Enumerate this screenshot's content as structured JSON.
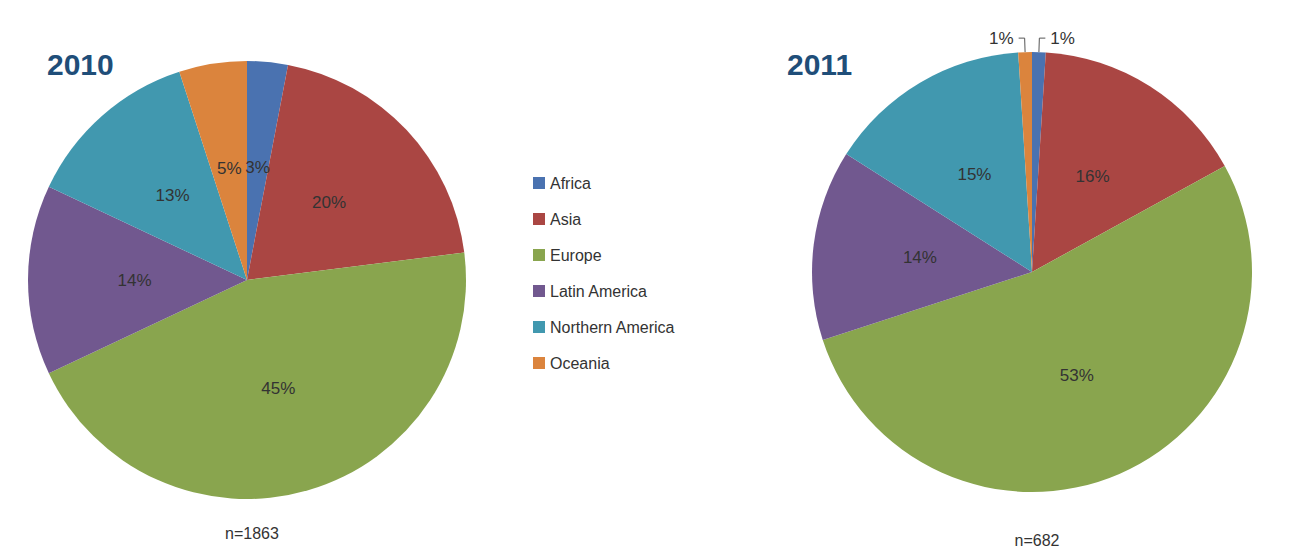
{
  "chart_data": [
    {
      "type": "pie",
      "title": "2010",
      "subtitle": "n=1863",
      "categories": [
        "Africa",
        "Asia",
        "Europe",
        "Latin America",
        "Northern America",
        "Oceania"
      ],
      "values": [
        3,
        20,
        45,
        14,
        13,
        5
      ],
      "value_labels": [
        "3%",
        "20%",
        "45%",
        "14%",
        "13%",
        "5%"
      ],
      "colors": [
        "#4a72b0",
        "#aa4643",
        "#89a54e",
        "#71588f",
        "#4198af",
        "#db843d"
      ],
      "data_labels": true,
      "legend": "right"
    },
    {
      "type": "pie",
      "title": "2011",
      "subtitle": "n=682",
      "categories": [
        "Africa",
        "Asia",
        "Europe",
        "Latin America",
        "Northern America",
        "Oceania"
      ],
      "values": [
        1,
        16,
        53,
        14,
        15,
        1
      ],
      "value_labels": [
        "1%",
        "16%",
        "53%",
        "14%",
        "15%",
        "1%"
      ],
      "colors": [
        "#4a72b0",
        "#aa4643",
        "#89a54e",
        "#71588f",
        "#4198af",
        "#db843d"
      ],
      "data_labels": true
    }
  ]
}
